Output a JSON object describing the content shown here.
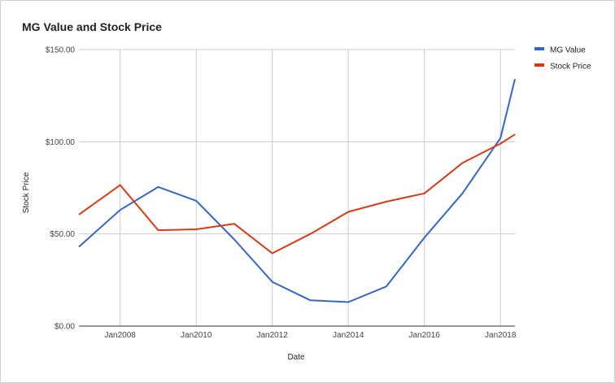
{
  "chart_data": {
    "type": "line",
    "title": "MG Value and Stock Price",
    "xlabel": "Date",
    "ylabel": "Stock Price",
    "ylim": [
      0,
      150
    ],
    "y_ticks": [
      0,
      50,
      100,
      150
    ],
    "y_tick_labels": [
      "$0.00",
      "$50.00",
      "$100.00",
      "$150.00"
    ],
    "x_ticks": [
      "2008-01-01",
      "2010-01-01",
      "2012-01-01",
      "2014-01-01",
      "2016-01-01",
      "2018-01-01"
    ],
    "x_tick_labels": [
      "Jan2008",
      "Jan2010",
      "Jan2012",
      "Jan2014",
      "Jan2016",
      "Jan2018"
    ],
    "xlim": [
      "2006-12-01",
      "2018-05-20"
    ],
    "grid": true,
    "legend_position": "right",
    "series": [
      {
        "name": "MG Value",
        "color": "#3366cc",
        "points": [
          {
            "x": "2006-12-01",
            "y": 43
          },
          {
            "x": "2008-01-01",
            "y": 63
          },
          {
            "x": "2009-01-01",
            "y": 75.5
          },
          {
            "x": "2010-01-01",
            "y": 68
          },
          {
            "x": "2011-01-01",
            "y": 47
          },
          {
            "x": "2012-01-01",
            "y": 24
          },
          {
            "x": "2013-01-01",
            "y": 14
          },
          {
            "x": "2014-01-01",
            "y": 13
          },
          {
            "x": "2015-01-01",
            "y": 21.5
          },
          {
            "x": "2016-01-01",
            "y": 48
          },
          {
            "x": "2017-01-01",
            "y": 72
          },
          {
            "x": "2018-01-01",
            "y": 102
          },
          {
            "x": "2018-05-20",
            "y": 134
          }
        ]
      },
      {
        "name": "Stock Price",
        "color": "#dc3912",
        "points": [
          {
            "x": "2006-12-01",
            "y": 60.5
          },
          {
            "x": "2008-01-01",
            "y": 76.5
          },
          {
            "x": "2009-01-01",
            "y": 52
          },
          {
            "x": "2010-01-01",
            "y": 52.5
          },
          {
            "x": "2011-01-01",
            "y": 55.5
          },
          {
            "x": "2012-01-01",
            "y": 39.5
          },
          {
            "x": "2013-01-01",
            "y": 50
          },
          {
            "x": "2014-01-01",
            "y": 62
          },
          {
            "x": "2015-01-01",
            "y": 67.5
          },
          {
            "x": "2016-01-01",
            "y": 72
          },
          {
            "x": "2017-01-01",
            "y": 88.5
          },
          {
            "x": "2018-01-01",
            "y": 99
          },
          {
            "x": "2018-05-20",
            "y": 104
          }
        ]
      }
    ]
  }
}
